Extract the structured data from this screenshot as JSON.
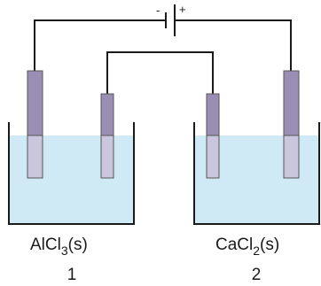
{
  "battery": {
    "negative_sign": "-",
    "positive_sign": "+"
  },
  "cells": [
    {
      "salt_main": "AlCl",
      "salt_subscript": "3",
      "salt_suffix": "(s)",
      "number": "1"
    },
    {
      "salt_main": "CaCl",
      "salt_subscript": "2",
      "salt_suffix": "(s)",
      "number": "2"
    }
  ],
  "colors": {
    "electrolyte": "#cfe9f5",
    "electrode_dark": "#9b8eb4",
    "electrode_immersed": "#c9c6dd",
    "wire": "#1a1a1a"
  }
}
